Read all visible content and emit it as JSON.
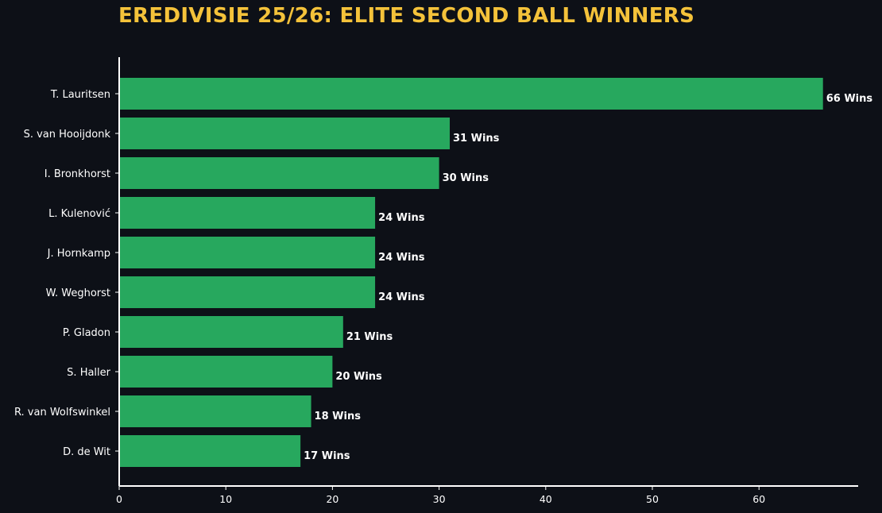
{
  "colors": {
    "background": "#0d1017",
    "title": "#f4c23a",
    "bar": "#27a85e",
    "text": "#ffffff",
    "axis": "#ffffff"
  },
  "chart_data": {
    "type": "bar",
    "orientation": "horizontal",
    "title": "EREDIVISIE 25/26: ELITE SECOND BALL WINNERS",
    "xlabel": "",
    "ylabel": "",
    "categories": [
      "T. Lauritsen",
      "S. van Hooijdonk",
      "I. Bronkhorst",
      "L. Kulenović",
      "J. Hornkamp",
      "W. Weghorst",
      "P. Gladon",
      "S. Haller",
      "R. van Wolfswinkel",
      "D. de Wit"
    ],
    "values": [
      66,
      31,
      30,
      24,
      24,
      24,
      21,
      20,
      18,
      17
    ],
    "value_labels": [
      "66 Wins",
      "31 Wins",
      "30 Wins",
      "24 Wins",
      "24 Wins",
      "24 Wins",
      "21 Wins",
      "20 Wins",
      "18 Wins",
      "17 Wins"
    ],
    "xticks": [
      0,
      10,
      20,
      30,
      40,
      50,
      60
    ],
    "xlim": [
      0,
      69.3
    ],
    "grid": false,
    "legend": "none"
  }
}
